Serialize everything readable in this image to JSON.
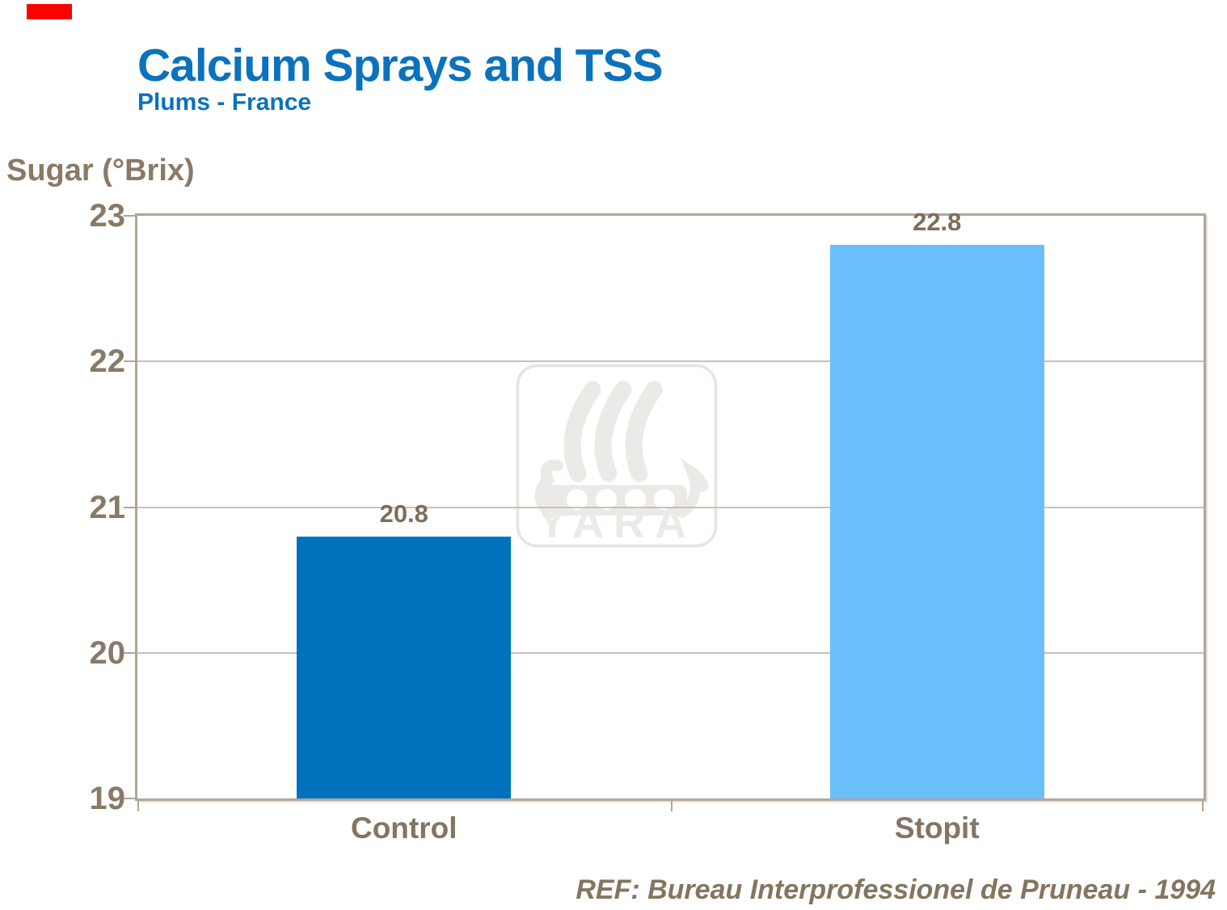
{
  "slide": {
    "accent_color": "#fe0000",
    "title": "Calcium Sprays and TSS",
    "subtitle": "Plums - France",
    "title_color": "#0b72bd",
    "reference": "REF: Bureau Interprofessionel de Pruneau - 1994"
  },
  "watermark": {
    "icon": "viking-ship-icon",
    "text": "YARA",
    "color": "#eceae6",
    "border_color": "#e7e4e0"
  },
  "chart_data": {
    "type": "bar",
    "categories": [
      "Control",
      "Stopit"
    ],
    "values": [
      20.8,
      22.8
    ],
    "value_labels": [
      "20.8",
      "22.8"
    ],
    "bar_colors": [
      "#0071bd",
      "#6abefa"
    ],
    "title": "Calcium Sprays and TSS",
    "subtitle": "Plums - France",
    "xlabel": "",
    "ylabel": "Sugar (°Brix)",
    "ylim": [
      19,
      23
    ],
    "yticks": [
      23,
      22,
      21,
      20,
      19
    ],
    "grid": true,
    "legend": false,
    "axis_color": "#b2a698",
    "gridline_color": "#ccc0b4",
    "text_color": "#897a66"
  }
}
